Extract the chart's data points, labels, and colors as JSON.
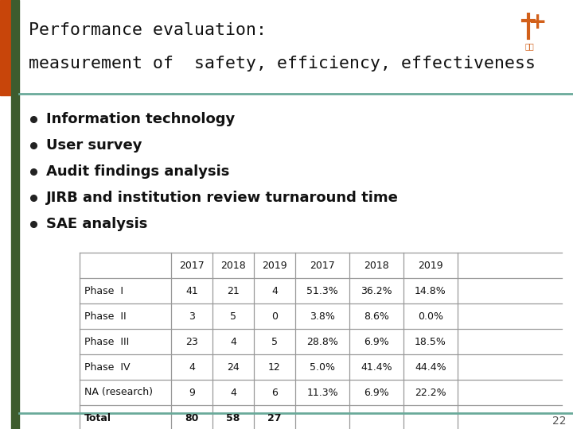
{
  "title_line1": "Performance evaluation:",
  "title_line2": "measurement of  safety, efficiency, effectiveness",
  "bullets": [
    "Information technology",
    "User survey",
    "Audit findings analysis",
    "JIRB and institution review turnaround time",
    "SAE analysis"
  ],
  "table_headers": [
    "",
    "2017",
    "2018",
    "2019",
    "2017",
    "2018",
    "2019"
  ],
  "table_rows": [
    [
      "Phase  I",
      "41",
      "21",
      "4",
      "51.3%",
      "36.2%",
      "14.8%"
    ],
    [
      "Phase  II",
      "3",
      "5",
      "0",
      "3.8%",
      "8.6%",
      "0.0%"
    ],
    [
      "Phase  III",
      "23",
      "4",
      "5",
      "28.8%",
      "6.9%",
      "18.5%"
    ],
    [
      "Phase  IV",
      "4",
      "24",
      "12",
      "5.0%",
      "41.4%",
      "44.4%"
    ],
    [
      "NA (research)",
      "9",
      "4",
      "6",
      "11.3%",
      "6.9%",
      "22.2%"
    ],
    [
      "Total",
      "80",
      "58",
      "27",
      "",
      "",
      ""
    ]
  ],
  "bg_color": "#ffffff",
  "left_bar_color": "#3d5c2e",
  "orange_bar_color": "#c8450a",
  "teal_line_color": "#6aaa9a",
  "title_color": "#111111",
  "bullet_color": "#111111",
  "table_line_color": "#999999",
  "page_number": "22",
  "logo_cross_color": "#d2601a",
  "logo_text_color": "#d2601a"
}
